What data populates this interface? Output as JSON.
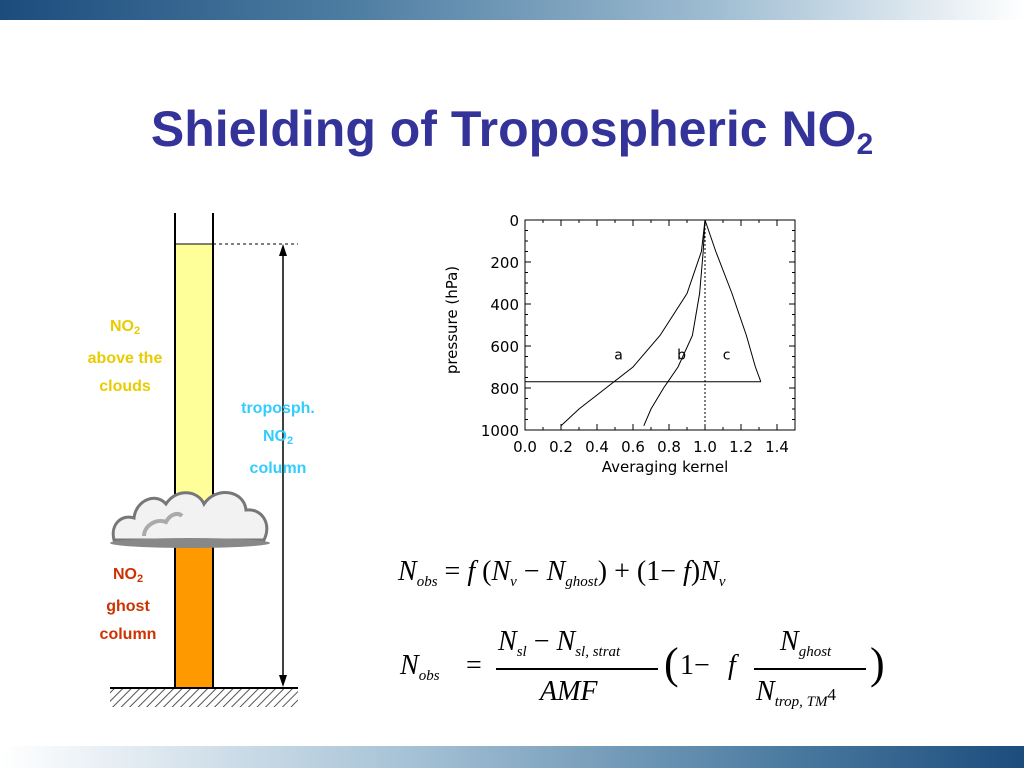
{
  "slide": {
    "title": "Shielding of Tropospheric NO",
    "title_sub": "2"
  },
  "diagram": {
    "above": {
      "line1": "NO",
      "line1_sub": "2",
      "line2": "above the",
      "line3": "clouds"
    },
    "tropo": {
      "line1": "troposph.",
      "line2": "NO",
      "line2_sub": "2",
      "line3": "column"
    },
    "ghost": {
      "line1": "NO",
      "line1_sub": "2",
      "line2": "ghost",
      "line3": "column"
    },
    "colors": {
      "above_label": "#e8cc00",
      "tropo_label": "#33ccff",
      "ghost_label": "#cc3300",
      "above_fill": "#ffff99",
      "ghost_fill": "#ff9900"
    }
  },
  "chart_data": {
    "type": "line",
    "xlabel": "Averaging kernel",
    "ylabel": "pressure (hPa)",
    "xlim": [
      0.0,
      1.5
    ],
    "ylim": [
      1000,
      0
    ],
    "x_ticks": [
      "0.0",
      "0.2",
      "0.4",
      "0.6",
      "0.8",
      "1.0",
      "1.2",
      "1.4"
    ],
    "y_ticks": [
      "0",
      "200",
      "400",
      "600",
      "800",
      "1000"
    ],
    "cloud_level": 770,
    "reference_x": 1.0,
    "series": [
      {
        "name": "a",
        "x": [
          1.0,
          0.98,
          0.9,
          0.75,
          0.6,
          0.45,
          0.3,
          0.2
        ],
        "y": [
          0,
          150,
          350,
          550,
          700,
          800,
          900,
          980
        ]
      },
      {
        "name": "b",
        "x": [
          1.0,
          0.99,
          0.97,
          0.93,
          0.85,
          0.77,
          0.7,
          0.66
        ],
        "y": [
          0,
          150,
          350,
          550,
          700,
          800,
          900,
          980
        ]
      },
      {
        "name": "c",
        "x": [
          1.0,
          1.06,
          1.15,
          1.23,
          1.28,
          1.31
        ],
        "y": [
          0,
          150,
          350,
          550,
          700,
          770
        ]
      }
    ]
  },
  "equations": {
    "eq1": {
      "N": "N",
      "obs": "obs",
      "eq": "=",
      "f": "f",
      "lp": "(",
      "v": "v",
      "minus": "−",
      "ghost": "ghost",
      "rp": ")",
      "plus": "+",
      "one_lp": "(1",
      "rp2": ")"
    },
    "eq2": {
      "N": "N",
      "obs": "obs",
      "eq": "=",
      "sl": "sl",
      "minus": "−",
      "sl_strat": "sl, strat",
      "amf": "AMF",
      "lp": "(",
      "one_minus": "1−",
      "f": "f",
      "ghost": "ghost",
      "trop": "trop",
      "tm": ", TM",
      "four": "4",
      "rp": ")"
    }
  }
}
